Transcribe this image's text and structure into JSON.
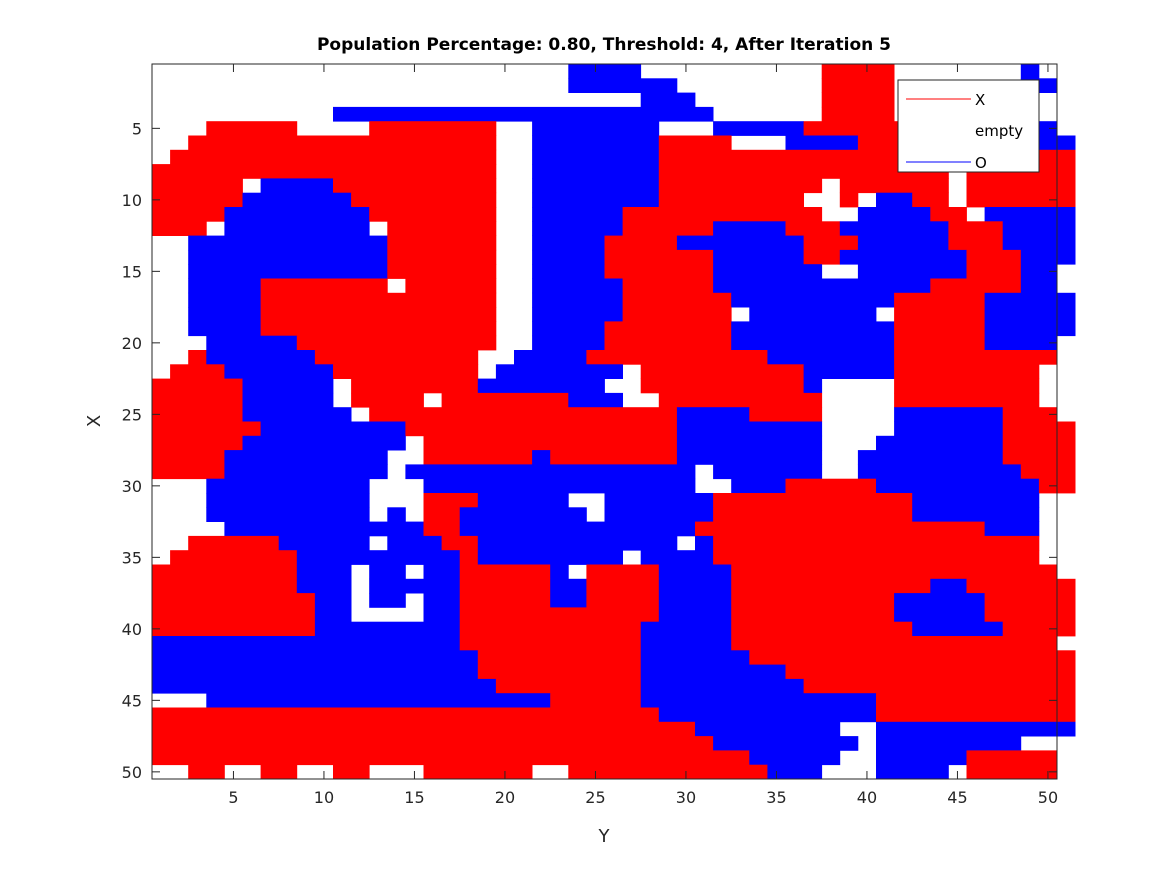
{
  "chart_data": {
    "type": "heatmap",
    "title": "Population Percentage: 0.80, Threshold: 4, After Iteration 5",
    "xlabel": "Y",
    "ylabel": "X",
    "xlim": [
      0.5,
      50.5
    ],
    "ylim": [
      0.5,
      50.5
    ],
    "y_reversed": true,
    "xticks": [
      5,
      10,
      15,
      20,
      25,
      30,
      35,
      40,
      45,
      50
    ],
    "yticks": [
      5,
      10,
      15,
      20,
      25,
      30,
      35,
      40,
      45,
      50
    ],
    "grid": false,
    "legend": {
      "placement": "top-right",
      "entries": [
        {
          "name": "X",
          "color": "#ff0000"
        },
        {
          "name": "empty",
          "color": "#ffffff"
        },
        {
          "name": "O",
          "color": "#0000ff"
        }
      ]
    },
    "colors": {
      "X": "#ff0000",
      "O": "#0000ff",
      "empty": "#ffffff"
    },
    "grid_legend": "rows = X (1 at top), columns = Y; R = X, B = O, . = empty",
    "grid_rows": [
      ".......................BBBB..........RRRR.......B..",
      ".......................BBBBBB........RRRR.......BB.",
      "...........................BBB.......RRRR..........",
      "..........BBBBBBBBBBBBBBBBBBBBB......RRRR..........",
      "...RRRRR....RRRRRRR..BBBBBBB...BBBBBRRRRRR..BBBBBB.",
      "..RRRRRRRRRRRRRRRRR..BBBBBBBRRRR...BBBBRRRR..BBBBBB",
      ".RRRRRRRRRRRRRRRRRR..BBBBBBBRRRRRRRRRRRRRRRR..BBBRR",
      "RRRRRRRRRRRRRRRRRRR..BBBBBBBRRRRRRRRRRRRRRRR.RRRRRR",
      "RRRRR.BBBBRRRRRRRRR..BBBBBBBRRRRRRRRR.RRRRRR.RRRRRR",
      "RRRRRBBBBBBRRRRRRRR..BBBBBBBRRRRRRRR..R.BBRR.RRRRRR",
      "RRRRBBBBBBBBRRRRRRR..BBBBBRRRRRRRRRRR..BBBBRR.BBBBB",
      "RRR.BBBBBBBB.RRRRRR..BBBBBRRRRRBBBBRRRBBBBBBRRRBBBB",
      "..BBBBBBBBBBBRRRRRR..BBBBRRRRBBBBBBBRRRBBBBBRRRBBBB",
      "..BBBBBBBBBBBRRRRRR..BBBBRRRRRRBBBBBRRBBBBBBBRRRBBB",
      "..BBBBBBBBBBBRRRRRR..BBBBRRRRRRBBBBBB..BBBBBBRRRBB.",
      "..BBBBRRRRRRR.RRRRR..BBBBBRRRRRBBBBBBBBBBBBRRRRRBB.",
      "..BBBBRRRRRRRRRRRRR..BBBBBRRRRRRBBBBBBBBBRRRRRBBBBB",
      "..BBBBRRRRRRRRRRRRR..BBBBBRRRRRR.BBBBBBB.RRRRRBBBBB",
      "..BBBBRRRRRRRRRRRRR..BBBBRRRRRRRBBBBBBBBBRRRRRBBBBB",
      "...BBBBBRRRRRRRRRRR..BBBBRRRRRRRBBBBBBBBBRRRRRBBBB.",
      "..RBBBBBBRRRRRRRRR..BBBBRRRRRRRRRRBBBBBBBRRRRRRRRR.",
      ".RRRBBBBBBRRRRRRRR.BBBBBBB.RRRRRRRRRBBBBBRRRRRRRR..",
      "RRRRRBBBBB.RRRRRRRBBBBBBB..RRRRRRRRRB....RRRRRRRR..",
      "RRRRRBBBBB.RRRR.RRRRRRRBBB..RRRRRRRRR....RRRRRRRR..",
      "RRRRRBBBBBB.RRRRRRRRRRRRRRRRRBBBBRRRR....BBBBBBRRR.",
      "RRRRRRBBBBBBBBRRRRRRRRRRRRRRRBBBBBBBB....BBBBBBRRRR",
      "RRRRRBBBBBBBBB.RRRRRRRRRRRRRRBBBBBBBB...BBBBBBBRRRR",
      "RRRRBBBBBBBBB..RRRRRRBRRRRRRRBBBBBBBB..BBBBBBBBRRRR",
      "RRRRBBBBBBBBB.BBBBBBBBBBBBBBBB.BBBBBB..BBBBBBBBBRRR",
      "...BBBBBBBBB...BBBBBBBBBBBBBBB..BBBRRRRRBBBBBBBBBRR",
      "...BBBBBBBBB...RRRBBBBB..BBBBBBRRRRRRRRRRRBBBBBBB..",
      "...BBBBBBBBB.B.RRBBBBBBB.BBBBBBRRRRRRRRRRRBBBBBBB..",
      "....BBBBBBBBBBBRRBBBBBBBBBBBBBRRRRRRRRRRRRRRRRBBB..",
      "..RRRRRBBBBB.BBBRRBBBBBBBBBBB.BRRRRRRRRRRRRRRRRRR..",
      ".RRRRRRRBBBBBBBBBRBBBBBBBB.BBBBRRRRRRRRRRRRRRRRRR..",
      "RRRRRRRRBBB.BB.BBRRRRRB.RRRRBBBBRRRRRRRRRRRRRRRRRR.",
      "RRRRRRRRBBB.BBBBBRRRRRBBRRRRBBBBRRRRRRRRRRRBBRRRRRR",
      "RRRRRRRRRBB.BB.BBRRRRRBBRRRRBBBBRRRRRRRRRBBBBBRRRRR",
      "RRRRRRRRRBB....BBRRRRRRRRRRRBBBBRRRRRRRRRBBBBBRRRRR",
      "RRRRRRRRRBBBBBBBBRRRRRRRRRRBBBBBRRRRRRRRRRBBBBBRRRR",
      "BBBBBBBBBBBBBBBBBRRRRRRRRRRBBBBBRRRRRRRRRRRRRRRRRR.",
      "BBBBBBBBBBBBBBBBBBRRRRRRRRRBBBBBBRRRRRRRRRRRRRRRRRR",
      "BBBBBBBBBBBBBBBBBBRRRRRRRRRBBBBBBBBRRRRRRRRRRRRRRRR",
      "BBBBBBBBBBBBBBBBBBBRRRRRRRRBBBBBBBBBRRRRRRRRRRRRRRR",
      "...BBBBBBBBBBBBBBBBBBBRRRRRBBBBBBBBBBBBBRRRRRRRRRRR",
      "RRRRRRRRRRRRRRRRRRRRRRRRRRRRBBBBBBBBBBBBRRRRRRRRRRR",
      "RRRRRRRRRRRRRRRRRRRRRRRRRRRRRRBBBBBBBB..BBBBBBBBBBB",
      "RRRRRRRRRRRRRRRRRRRRRRRRRRRRRRRBBBBBBBB.BBBBBBBB...",
      "RRRRRRRRRRRRRRRRRRRRRRRRRRRRRRRRRBBBBB..BBBBBRRRRR.",
      "..RR..RR..RR...RRRRRR..RRRRRRRRRRRBBB...BBBB.RRRRR."
    ]
  }
}
